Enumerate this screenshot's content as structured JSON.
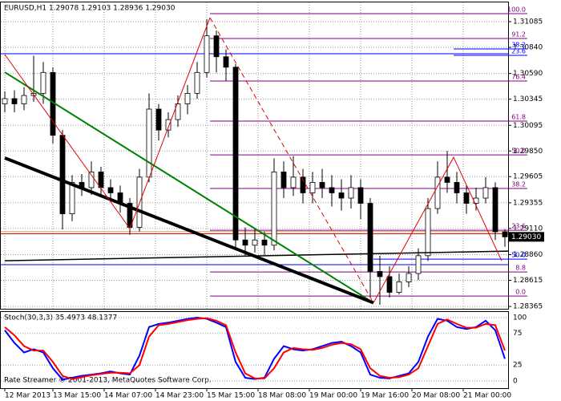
{
  "chart_data": [
    {
      "type": "candlestick",
      "header": "EURUSD,H1  1.29078 1.29103 1.28936 1.29030",
      "x": [
        0,
        3,
        6,
        9,
        12,
        15,
        18,
        21,
        24,
        27,
        30,
        33,
        36,
        39,
        42,
        45,
        48,
        51,
        54,
        57,
        60,
        63,
        66,
        69,
        72,
        75,
        78,
        81,
        84,
        87,
        90,
        93,
        96,
        99,
        102,
        105,
        108,
        111,
        114,
        117,
        120,
        123,
        126,
        129,
        132,
        135,
        138,
        141,
        144,
        147,
        150,
        153,
        156
      ],
      "open": [
        1.303,
        1.3035,
        1.303,
        1.3038,
        1.304,
        1.306,
        1.3,
        1.2925,
        1.2955,
        1.295,
        1.2965,
        1.295,
        1.2945,
        1.2935,
        1.2912,
        1.296,
        1.3025,
        1.3005,
        1.3015,
        1.303,
        1.304,
        1.306,
        1.3095,
        1.3075,
        1.3065,
        1.29,
        1.2895,
        1.29,
        1.2895,
        1.2965,
        1.295,
        1.296,
        1.2945,
        1.2955,
        1.295,
        1.2945,
        1.294,
        1.295,
        1.2935,
        1.287,
        1.2865,
        1.285,
        1.286,
        1.2868,
        1.2885,
        1.293,
        1.296,
        1.2955,
        1.2945,
        1.2935,
        1.294,
        1.295,
        1.29078
      ],
      "high": [
        1.3042,
        1.3043,
        1.3046,
        1.3076,
        1.307,
        1.3065,
        1.3005,
        1.2962,
        1.2963,
        1.2975,
        1.297,
        1.2958,
        1.2952,
        1.294,
        1.2968,
        1.304,
        1.303,
        1.3022,
        1.3038,
        1.3048,
        1.307,
        1.3111,
        1.31,
        1.3082,
        1.3068,
        1.2912,
        1.291,
        1.2908,
        1.2978,
        1.2975,
        1.298,
        1.2968,
        1.2965,
        1.2968,
        1.2962,
        1.2958,
        1.2962,
        1.2958,
        1.294,
        1.2885,
        1.2875,
        1.2868,
        1.2875,
        1.2892,
        1.294,
        1.2975,
        1.2985,
        1.2965,
        1.2952,
        1.295,
        1.296,
        1.2955,
        1.29103
      ],
      "low": [
        1.3022,
        1.3022,
        1.3024,
        1.3032,
        1.303,
        1.2992,
        1.291,
        1.2918,
        1.2942,
        1.2943,
        1.2942,
        1.2936,
        1.2926,
        1.2905,
        1.2908,
        1.2955,
        1.2995,
        1.2998,
        1.3008,
        1.302,
        1.3035,
        1.3055,
        1.306,
        1.3052,
        1.2892,
        1.2885,
        1.2888,
        1.2886,
        1.289,
        1.294,
        1.2942,
        1.2935,
        1.2935,
        1.294,
        1.2932,
        1.2928,
        1.293,
        1.292,
        1.2845,
        1.2838,
        1.2845,
        1.2848,
        1.2855,
        1.2862,
        1.288,
        1.2925,
        1.2945,
        1.2935,
        1.2925,
        1.2928,
        1.2935,
        1.29,
        1.28936
      ],
      "close": [
        1.3035,
        1.303,
        1.3038,
        1.304,
        1.306,
        1.3,
        1.2925,
        1.2955,
        1.295,
        1.2965,
        1.295,
        1.2945,
        1.2935,
        1.2912,
        1.296,
        1.3025,
        1.3005,
        1.3015,
        1.303,
        1.304,
        1.306,
        1.3095,
        1.3075,
        1.3065,
        1.29,
        1.2895,
        1.29,
        1.2895,
        1.2965,
        1.295,
        1.296,
        1.2945,
        1.2955,
        1.295,
        1.2945,
        1.294,
        1.295,
        1.2935,
        1.287,
        1.2865,
        1.285,
        1.286,
        1.2868,
        1.2885,
        1.293,
        1.296,
        1.2955,
        1.2945,
        1.2935,
        1.294,
        1.295,
        1.29078,
        1.2903
      ],
      "xlim": [
        0,
        157
      ],
      "ylim": [
        1.28343,
        1.31269
      ],
      "yticks": [
        1.31085,
        {
          "value": 1.3084,
          "label": "1.30840"
        },
        {
          "value": 1.3059,
          "label": "1.30590"
        },
        1.30345,
        1.30095,
        {
          "value": 1.2985,
          "label": "1.29850"
        },
        1.29605,
        1.29355,
        {
          "value": 1.2911,
          "label": "1.29110"
        },
        {
          "value": 1.2886,
          "label": "1.28860"
        },
        1.28615,
        1.28365
      ],
      "xticks": [
        {
          "value": 0,
          "label": "12 Mar 2013"
        },
        {
          "value": 15,
          "label": "13 Mar 15:00"
        },
        {
          "value": 31,
          "label": "14 Mar 07:00"
        },
        {
          "value": 47,
          "label": "14 Mar 23:00"
        },
        {
          "value": 63,
          "label": "15 Mar 15:00"
        },
        {
          "value": 79,
          "label": "18 Mar 08:00"
        },
        {
          "value": 95,
          "label": "19 Mar 00:00"
        },
        {
          "value": 111,
          "label": "19 Mar 16:00"
        },
        {
          "value": 127,
          "label": "20 Mar 08:00"
        },
        {
          "value": 143,
          "label": "21 Mar 00:00"
        }
      ],
      "current_price": {
        "value": 1.2903,
        "label": "1.29030"
      },
      "hlines": [
        {
          "y": 1.30779,
          "color": "#0000ff"
        },
        {
          "y": 1.28764,
          "color": "#0000ff"
        },
        {
          "y": 1.2908,
          "color": "#e0a060"
        },
        {
          "y": 1.2906,
          "color": "#c00000"
        }
      ],
      "trendlines": [
        {
          "x": [
            0,
            157
          ],
          "y": [
            1.28802,
            1.28894
          ],
          "color": "#000000",
          "width": 1.5,
          "dash": false
        },
        {
          "x": [
            0,
            115
          ],
          "y": [
            1.30602,
            1.284
          ],
          "color": "#008000",
          "width": 2,
          "dash": false
        },
        {
          "x": [
            0,
            115
          ],
          "y": [
            1.29783,
            1.284
          ],
          "color": "#000000",
          "width": 4,
          "dash": false
        },
        {
          "x": [
            0,
            39,
            64
          ],
          "y": [
            1.30771,
            1.29109,
            1.31123
          ],
          "color": "#e00000",
          "width": 1,
          "dash": false
        },
        {
          "x": [
            64,
            115
          ],
          "y": [
            1.31123,
            1.284
          ],
          "color": "#e00000",
          "width": 1,
          "dash": true
        },
        {
          "x": [
            115,
            140,
            155
          ],
          "y": [
            1.284,
            1.2979,
            1.288
          ],
          "color": "#e00000",
          "width": 1,
          "dash": false
        }
      ],
      "fib_levels": [
        {
          "from": 64,
          "price": 1.31162,
          "text": "100.0",
          "color": "#800080"
        },
        {
          "from": 64,
          "price": 1.30924,
          "text": "91.2",
          "color": "#800080"
        },
        {
          "from": 140,
          "price": 1.30825,
          "text": "38.2",
          "color": "#0000ff"
        },
        {
          "from": 140,
          "price": 1.30763,
          "text": "23.6",
          "color": "#0000ff"
        },
        {
          "from": 64,
          "price": 1.30518,
          "text": "76.4",
          "color": "#800080"
        },
        {
          "from": 64,
          "price": 1.30135,
          "text": "61.8",
          "color": "#800080"
        },
        {
          "from": 64,
          "price": 1.29813,
          "text": "50.0",
          "color": "#800080"
        },
        {
          "from": 64,
          "price": 1.29492,
          "text": "38.2",
          "color": "#800080"
        },
        {
          "from": 64,
          "price": 1.29093,
          "text": "23.6",
          "color": "#800080"
        },
        {
          "from": 115,
          "price": 1.28817,
          "text": "50.0",
          "color": "#0000ff"
        },
        {
          "from": 64,
          "price": 1.28694,
          "text": "8.8",
          "color": "#800080"
        },
        {
          "from": 64,
          "price": 1.28465,
          "text": "0.0",
          "color": "#800080"
        }
      ]
    },
    {
      "type": "line",
      "title": "Stoch(30,3,3) 35.4973 48.1377",
      "footer": "Rate Streamer © 2001-2013, MetaQuotes Software Corp.",
      "x": [
        0,
        3,
        6,
        9,
        12,
        15,
        18,
        21,
        24,
        27,
        30,
        33,
        36,
        39,
        42,
        45,
        48,
        51,
        54,
        57,
        60,
        63,
        66,
        69,
        72,
        75,
        78,
        81,
        84,
        87,
        90,
        93,
        96,
        99,
        102,
        105,
        108,
        111,
        114,
        117,
        120,
        123,
        126,
        129,
        132,
        135,
        138,
        141,
        144,
        147,
        150,
        153,
        156
      ],
      "xlim": [
        0,
        157
      ],
      "ylim": [
        -11.4,
        110.1
      ],
      "yticks": [
        100,
        75,
        25,
        0
      ],
      "series": [
        {
          "color": "#0000ff",
          "values": [
            80,
            60,
            45,
            50,
            45,
            20,
            2,
            5,
            8,
            10,
            12,
            15,
            12,
            10,
            40,
            85,
            90,
            92,
            95,
            98,
            100,
            98,
            92,
            85,
            30,
            5,
            3,
            5,
            35,
            55,
            50,
            48,
            50,
            55,
            60,
            62,
            55,
            45,
            10,
            5,
            4,
            8,
            12,
            30,
            70,
            98,
            95,
            85,
            82,
            85,
            95,
            80,
            35
          ]
        },
        {
          "color": "#ff0000",
          "values": [
            85,
            72,
            55,
            48,
            48,
            30,
            8,
            3,
            6,
            9,
            11,
            13,
            13,
            12,
            25,
            70,
            88,
            90,
            93,
            96,
            98,
            99,
            95,
            88,
            45,
            12,
            4,
            4,
            20,
            45,
            52,
            50,
            49,
            52,
            57,
            60,
            58,
            50,
            20,
            8,
            5,
            6,
            10,
            20,
            55,
            90,
            97,
            90,
            84,
            84,
            90,
            88,
            48
          ]
        }
      ]
    }
  ]
}
